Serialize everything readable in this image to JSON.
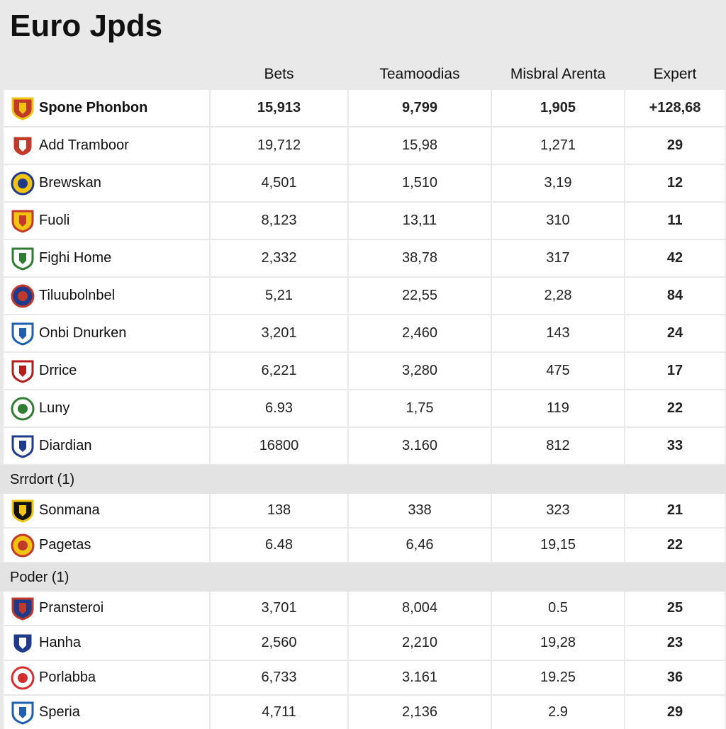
{
  "title": "Euro Jpds",
  "header": [
    "Bets",
    "Teamoodias",
    "Misbral Arenta",
    "Expert"
  ],
  "rows": [
    {
      "team": "Spone Phonbon",
      "values": [
        "15,913",
        "9,799",
        "1,905",
        "+128,68"
      ]
    },
    {
      "team": "Add Tramboor",
      "values": [
        "19,712",
        "15,98",
        "1,271",
        "29"
      ]
    },
    {
      "team": "Brewskan",
      "values": [
        "4,501",
        "1,510",
        "3,19",
        "12"
      ]
    },
    {
      "team": "Fuoli",
      "values": [
        "8,123",
        "13,11",
        "310",
        "11"
      ]
    },
    {
      "team": "Fighi Home",
      "values": [
        "2,332",
        "38,78",
        "317",
        "42"
      ]
    },
    {
      "team": "Tiluubolnbel",
      "values": [
        "5,21",
        "22,55",
        "2,28",
        "84"
      ]
    },
    {
      "team": "Onbi Dnurken",
      "values": [
        "3,201",
        "2,460",
        "143",
        "24"
      ]
    },
    {
      "team": "Drrice",
      "values": [
        "6,221",
        "3,280",
        "475",
        "17"
      ]
    },
    {
      "team": "Luny",
      "values": [
        "6.93",
        "1,75",
        "119",
        "22"
      ]
    },
    {
      "team": "Diardian",
      "values": [
        "16800",
        "3.160",
        "812",
        "33"
      ]
    }
  ],
  "sections": [
    {
      "label": "Srrdort (1)",
      "rows": [
        {
          "team": "Sonmana",
          "values": [
            "138",
            "338",
            "323",
            "21"
          ]
        },
        {
          "team": "Pagetas",
          "values": [
            "6.48",
            "6,46",
            "19,15",
            "22"
          ]
        }
      ]
    },
    {
      "label": "Poder (1)",
      "rows": [
        {
          "team": "Pransteroi",
          "values": [
            "3,701",
            "8,004",
            "0.5",
            "25"
          ]
        },
        {
          "team": "Hanha",
          "values": [
            "2,560",
            "2,210",
            "19,28",
            "23"
          ]
        },
        {
          "team": "Porlabba",
          "values": [
            "6,733",
            "3.161",
            "19.25",
            "36"
          ]
        },
        {
          "team": "Speria",
          "values": [
            "4,711",
            "2,136",
            "2.9",
            "29"
          ]
        }
      ]
    }
  ]
}
